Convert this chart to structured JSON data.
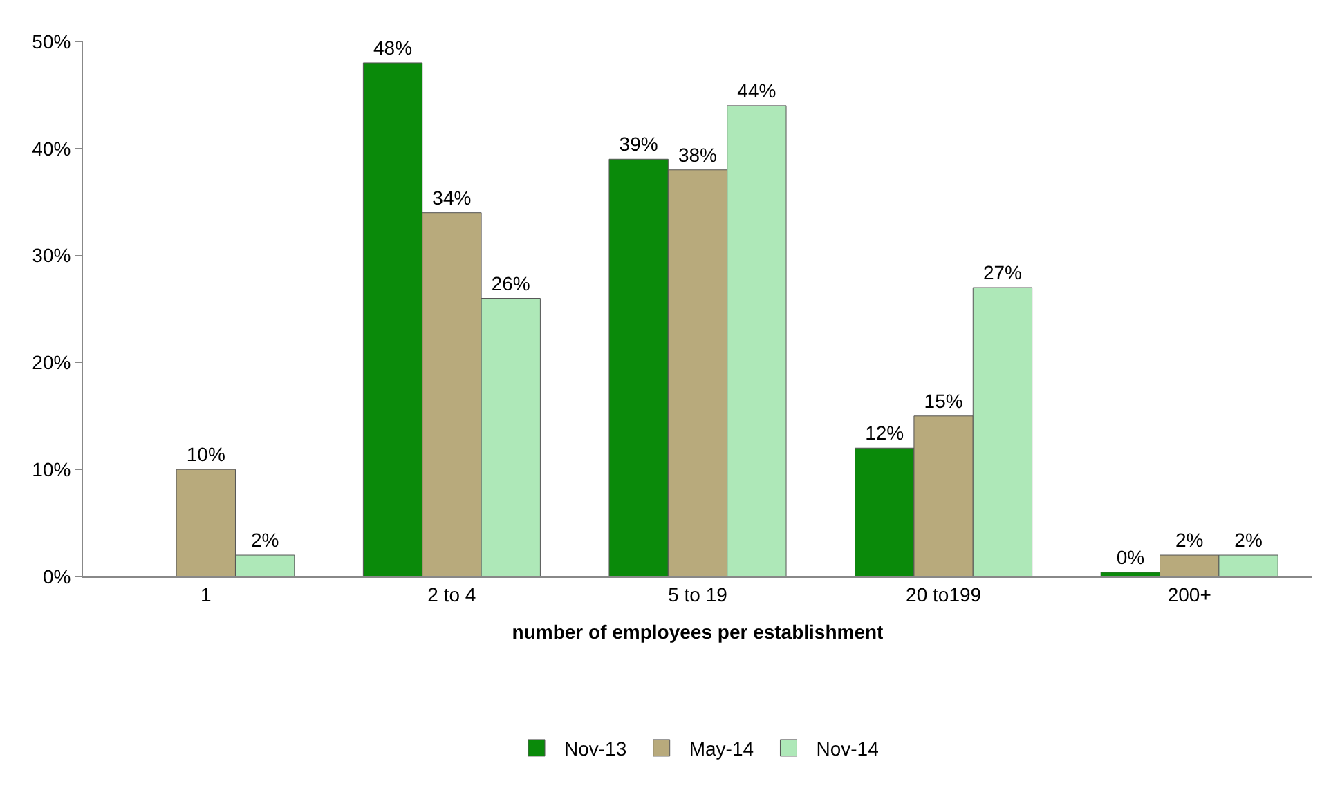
{
  "chart_data": {
    "type": "bar",
    "xlabel": "number of employees per establishment",
    "categories": [
      "1",
      "2 to 4",
      "5 to 19",
      "20 to199",
      "200+"
    ],
    "series": [
      {
        "name": "Nov-13",
        "color": "#0a8a0a",
        "values": [
          null,
          48,
          39,
          12,
          0.4
        ],
        "value_labels": [
          null,
          "48%",
          "39%",
          "12%",
          "0%"
        ]
      },
      {
        "name": "May-14",
        "color": "#b8aa7c",
        "values": [
          10,
          34,
          38,
          15,
          2
        ],
        "value_labels": [
          "10%",
          "34%",
          "38%",
          "15%",
          "2%"
        ]
      },
      {
        "name": "Nov-14",
        "color": "#aee8b8",
        "values": [
          2,
          26,
          44,
          27,
          2
        ],
        "value_labels": [
          "2%",
          "26%",
          "44%",
          "27%",
          "2%"
        ]
      }
    ],
    "ylim": [
      0,
      50
    ],
    "yticks": [
      {
        "value": 0,
        "label": "0%"
      },
      {
        "value": 10,
        "label": "10%"
      },
      {
        "value": 20,
        "label": "20%"
      },
      {
        "value": 30,
        "label": "30%"
      },
      {
        "value": 40,
        "label": "40%"
      },
      {
        "value": 50,
        "label": "50%"
      }
    ],
    "grid": false,
    "legend": "bottom"
  }
}
